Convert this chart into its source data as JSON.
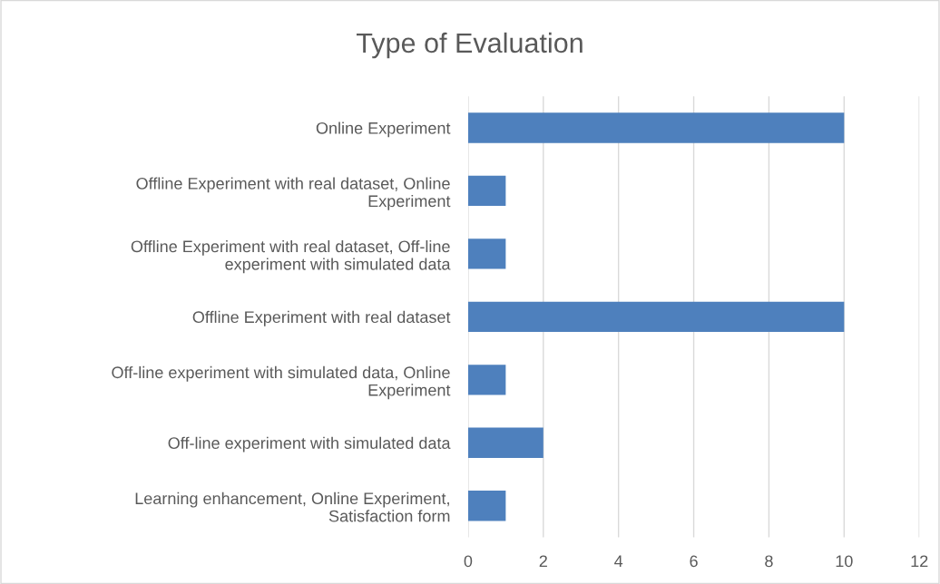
{
  "chart_data": {
    "type": "bar",
    "orientation": "horizontal",
    "title": "Type of Evaluation",
    "categories": [
      "Online Experiment",
      "Offline Experiment with real dataset, Online Experiment",
      "Offline Experiment with real dataset, Off-line experiment with simulated data",
      "Offline Experiment with real dataset",
      "Off-line experiment with simulated data, Online Experiment",
      "Off-line experiment with simulated data",
      "Learning enhancement, Online Experiment, Satisfaction form"
    ],
    "values": [
      10,
      1,
      1,
      10,
      1,
      2,
      1
    ],
    "color": "#4e80bd",
    "xlim": [
      0,
      12
    ],
    "xticks": [
      0,
      2,
      4,
      6,
      8,
      10,
      12
    ],
    "grid": "x",
    "legend": false
  }
}
